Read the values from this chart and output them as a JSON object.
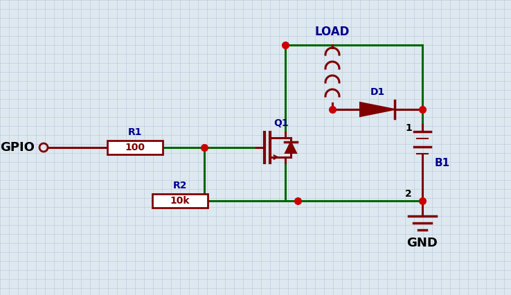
{
  "bg_color": "#dde8f0",
  "grid_color": "#b8c8d8",
  "wire_color": "#006600",
  "comp_color": "#800000",
  "label_color": "#00008B",
  "dot_color": "#cc0000",
  "text_color": "#000000",
  "gpio_label": "GPIO",
  "r1_label": "R1",
  "r1_val": "100",
  "r2_label": "R2",
  "r2_val": "10k",
  "q1_label": "Q1",
  "d1_label": "D1",
  "b1_label": "B1",
  "load_label": "LOAD",
  "gnd_label": "GND",
  "figsize": [
    7.38,
    4.26
  ],
  "dpi": 100
}
